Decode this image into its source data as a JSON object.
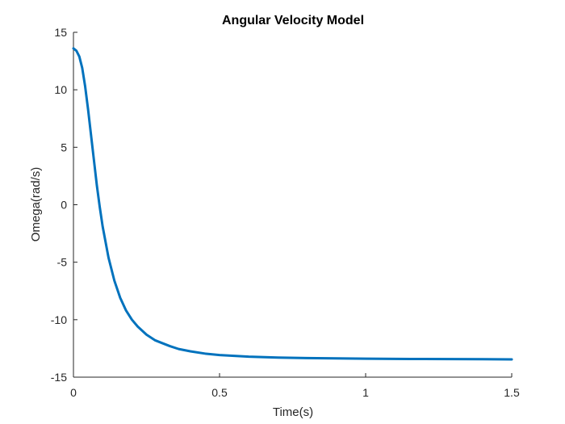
{
  "chart_data": {
    "type": "line",
    "title": "Angular Velocity Model",
    "xlabel": "Time(s)",
    "ylabel": "Omega(rad/s)",
    "xlim": [
      0,
      1.5
    ],
    "ylim": [
      -15,
      15
    ],
    "x_ticks": [
      0,
      0.5,
      1,
      1.5
    ],
    "x_tick_labels": [
      "0",
      "0.5",
      "1",
      "1.5"
    ],
    "y_ticks": [
      15,
      10,
      5,
      0,
      -5,
      -10,
      -15
    ],
    "y_tick_labels": [
      "15",
      "10",
      "5",
      "0",
      "-5",
      "-10",
      "-15"
    ],
    "grid": false,
    "line_color": "#0072BD",
    "series": [
      {
        "x": [
          0,
          0.01,
          0.02,
          0.03,
          0.04,
          0.05,
          0.06,
          0.07,
          0.08,
          0.09,
          0.1,
          0.12,
          0.14,
          0.16,
          0.18,
          0.2,
          0.22,
          0.25,
          0.28,
          0.3,
          0.33,
          0.36,
          0.4,
          0.45,
          0.5,
          0.55,
          0.6,
          0.7,
          0.8,
          0.9,
          1.0,
          1.1,
          1.2,
          1.3,
          1.4,
          1.5
        ],
        "y": [
          13.6,
          13.4,
          12.9,
          11.9,
          10.3,
          8.3,
          6.1,
          3.9,
          1.7,
          -0.2,
          -1.9,
          -4.6,
          -6.6,
          -8.1,
          -9.2,
          -10.0,
          -10.6,
          -11.3,
          -11.8,
          -12.0,
          -12.3,
          -12.55,
          -12.75,
          -12.95,
          -13.08,
          -13.15,
          -13.22,
          -13.3,
          -13.34,
          -13.37,
          -13.39,
          -13.41,
          -13.42,
          -13.43,
          -13.44,
          -13.45
        ]
      }
    ]
  }
}
